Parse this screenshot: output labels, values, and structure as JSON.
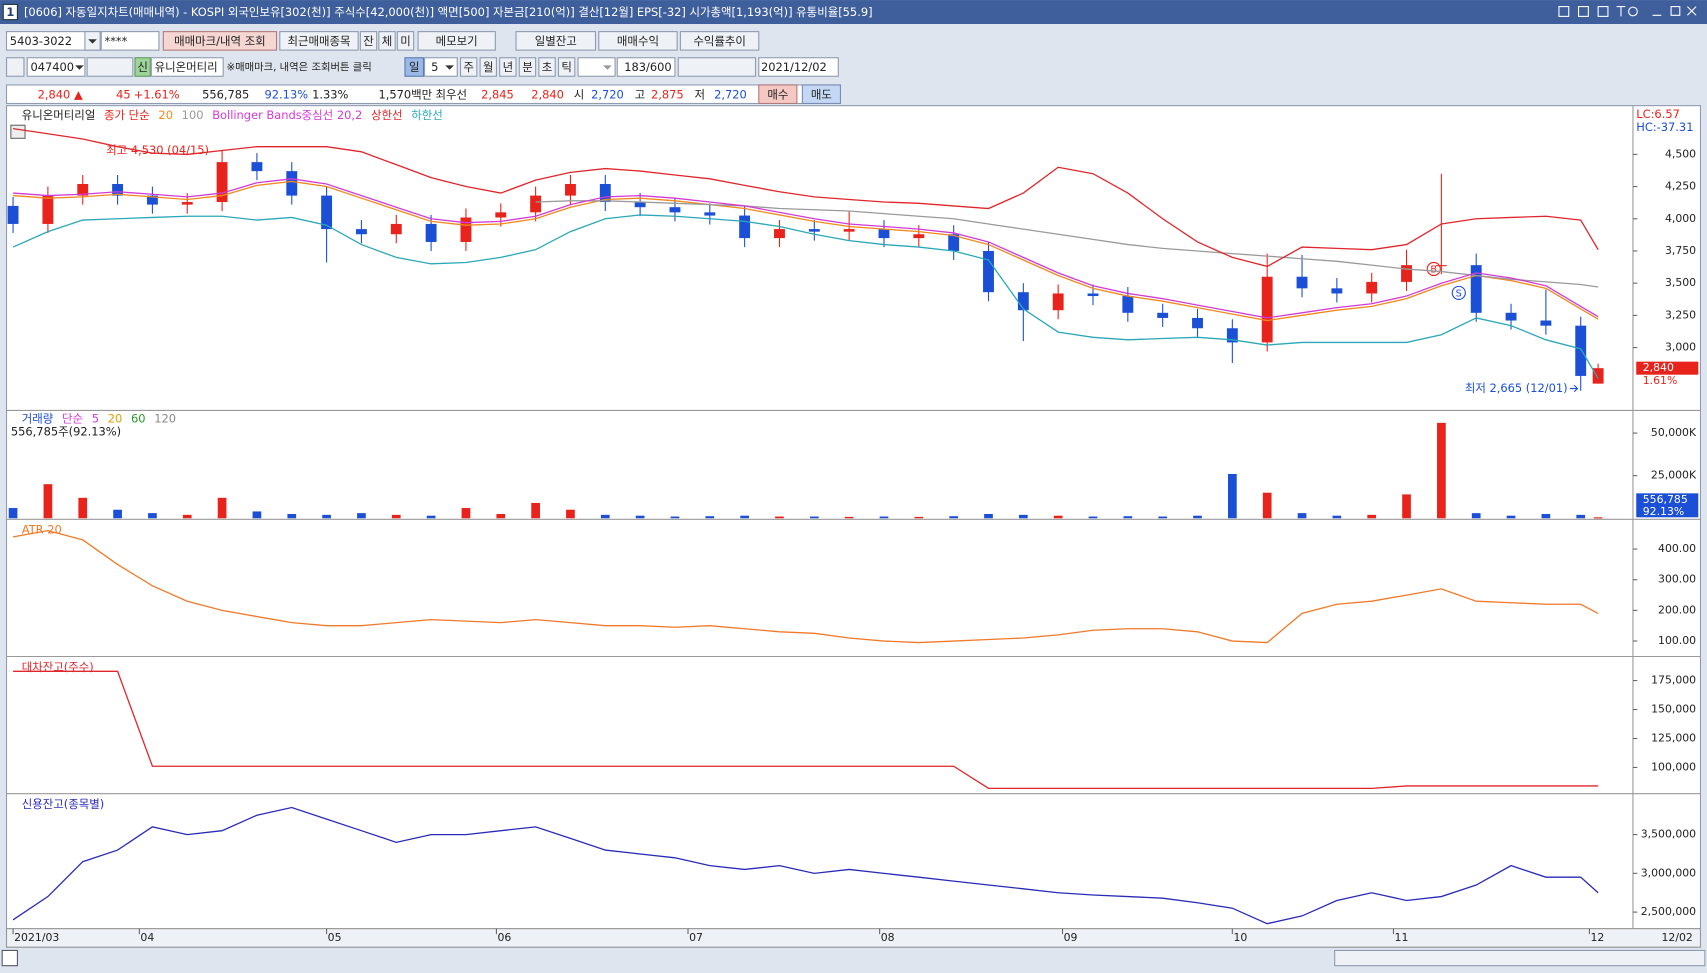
{
  "window": {
    "badge": "1",
    "title": "[0606] 자동일지차트(매매내역) - KOSPI 외국인보유[302(천)] 주식수[42,000(천)] 액면[500] 자본금[210(억)] 결산[12월] EPS[-32] 시가총액[1,193(억)] 유통비율[55.9]"
  },
  "toolbar": {
    "account": "5403-3022",
    "password": "****",
    "query_button": "매매마크/내역 조회",
    "recent_button": "최근매매종목",
    "tab_balance": "잔",
    "tab_exec": "체",
    "tab_pending": "미",
    "memo_button": "메모보기",
    "daily_button": "일별잔고",
    "profit_button": "매매수익",
    "return_button": "수익률추이",
    "code": "047400",
    "credit_badge": "신",
    "stock_name": "유니온머티리",
    "notice": "※매매마크, 내역은 조회버튼 클릭",
    "period_day": "일",
    "period_n": "5",
    "period_week": "주",
    "period_month": "월",
    "period_year": "년",
    "period_min": "분",
    "period_sec": "초",
    "period_tick": "틱",
    "count": "183/600",
    "date": "2021/12/02"
  },
  "quote": {
    "price": "2,840 ▲",
    "change": "45",
    "change_rate": "+1.61%",
    "volume": "556,785",
    "volume_rate": "92.13%",
    "turnover": "1.33%",
    "amount": "1,570백만",
    "best_label": "최우선",
    "ask": "2,845",
    "bid": "2,840",
    "open_label": "시",
    "open": "2,720",
    "high_label": "고",
    "high": "2,875",
    "low_label": "저",
    "low": "2,720",
    "buy_button": "매수",
    "sell_button": "매도"
  },
  "chart_data": [
    {
      "type": "candlestick",
      "title": "유니온머티리얼",
      "ma_label": "종가 단순",
      "up_color": "#e8231c",
      "down_color": "#1b4fd6",
      "x": [
        0,
        4,
        8,
        12,
        16,
        20,
        24,
        28,
        32,
        36,
        40,
        44,
        48,
        52,
        56,
        60,
        64,
        68,
        72,
        76,
        80,
        84,
        88,
        92,
        96,
        100,
        104,
        108,
        112,
        116,
        120,
        124,
        128,
        132,
        136,
        140,
        144,
        148,
        152,
        156,
        160,
        164,
        168,
        172,
        176,
        180,
        182
      ],
      "xlim": [
        -0.5,
        186
      ],
      "xticks": [
        {
          "value": 0,
          "label": "2021/03"
        },
        {
          "value": 14.5,
          "label": "04"
        },
        {
          "value": 36,
          "label": "05"
        },
        {
          "value": 55.5,
          "label": "06"
        },
        {
          "value": 77.5,
          "label": "07"
        },
        {
          "value": 99.5,
          "label": "08"
        },
        {
          "value": 120.5,
          "label": "09"
        },
        {
          "value": 140,
          "label": "10"
        },
        {
          "value": 158.5,
          "label": "11"
        },
        {
          "value": 181,
          "label": "12"
        }
      ],
      "end_label": "12/02",
      "open": [
        4100,
        3960,
        4180,
        4270,
        4180,
        4110,
        4130,
        4440,
        4370,
        4180,
        3920,
        3880,
        3960,
        3820,
        4010,
        4050,
        4180,
        4270,
        4130,
        4090,
        4050,
        4025,
        3850,
        3920,
        3900,
        3920,
        3850,
        3880,
        3750,
        3430,
        3290,
        3420,
        3400,
        3270,
        3230,
        3150,
        3040,
        3550,
        3460,
        3420,
        3510,
        3640,
        3640,
        3270,
        3210,
        3170,
        2720
      ],
      "high": [
        4170,
        4250,
        4340,
        4340,
        4250,
        4200,
        4530,
        4510,
        4440,
        4250,
        3990,
        4030,
        4030,
        4080,
        4120,
        4250,
        4340,
        4340,
        4200,
        4160,
        4120,
        4100,
        3990,
        3990,
        4060,
        3990,
        3950,
        3950,
        3820,
        3500,
        3490,
        3490,
        3470,
        3340,
        3300,
        3220,
        3730,
        3720,
        3540,
        3580,
        3760,
        4350,
        3730,
        3340,
        3450,
        3240,
        2875
      ],
      "low": [
        3890,
        3890,
        4110,
        4110,
        4040,
        4040,
        4060,
        4300,
        4110,
        3660,
        3810,
        3810,
        3750,
        3750,
        3940,
        3980,
        4110,
        4060,
        4020,
        3980,
        3955,
        3780,
        3780,
        3830,
        3830,
        3780,
        3780,
        3680,
        3360,
        3050,
        3220,
        3330,
        3200,
        3160,
        3080,
        2880,
        2970,
        3390,
        3350,
        3350,
        3440,
        3570,
        3200,
        3140,
        3100,
        2665,
        2720
      ],
      "close": [
        3960,
        4180,
        4270,
        4180,
        4110,
        4130,
        4440,
        4370,
        4180,
        3920,
        3880,
        3960,
        3820,
        4010,
        4050,
        4180,
        4270,
        4130,
        4090,
        4050,
        4025,
        3850,
        3920,
        3900,
        3920,
        3850,
        3880,
        3750,
        3430,
        3290,
        3420,
        3400,
        3270,
        3230,
        3150,
        3040,
        3550,
        3460,
        3420,
        3510,
        3640,
        3640,
        3270,
        3210,
        3170,
        2780,
        2840
      ],
      "series": [
        {
          "name": "20",
          "color": "#f08a1c",
          "values": [
            4180,
            4160,
            4170,
            4190,
            4170,
            4150,
            4180,
            4260,
            4290,
            4250,
            4160,
            4070,
            3980,
            3950,
            3960,
            4000,
            4090,
            4150,
            4160,
            4140,
            4110,
            4080,
            4030,
            3980,
            3940,
            3920,
            3900,
            3870,
            3800,
            3680,
            3560,
            3460,
            3400,
            3360,
            3310,
            3260,
            3210,
            3250,
            3290,
            3320,
            3380,
            3480,
            3560,
            3520,
            3460,
            3300,
            3220
          ]
        },
        {
          "name": "100",
          "color": "#9a9a9a",
          "values": [
            null,
            null,
            null,
            null,
            null,
            null,
            null,
            null,
            null,
            null,
            null,
            null,
            null,
            null,
            null,
            4130,
            4140,
            4140,
            4130,
            4120,
            4110,
            4100,
            4080,
            4070,
            4060,
            4040,
            4020,
            4000,
            3960,
            3920,
            3880,
            3840,
            3800,
            3770,
            3750,
            3730,
            3710,
            3690,
            3670,
            3640,
            3610,
            3590,
            3560,
            3530,
            3510,
            3490,
            3470
          ]
        },
        {
          "name": "Bollinger Bands중심선 20,2",
          "color": "#d23ad8",
          "values": [
            4200,
            4180,
            4190,
            4210,
            4190,
            4170,
            4200,
            4280,
            4310,
            4270,
            4180,
            4090,
            4000,
            3970,
            3980,
            4020,
            4110,
            4170,
            4180,
            4160,
            4130,
            4100,
            4050,
            4000,
            3960,
            3940,
            3920,
            3890,
            3820,
            3700,
            3580,
            3480,
            3420,
            3380,
            3330,
            3280,
            3230,
            3270,
            3310,
            3340,
            3400,
            3500,
            3580,
            3540,
            3480,
            3320,
            3240
          ]
        },
        {
          "name": "상한선",
          "color": "#e0262a",
          "values": [
            4700,
            4660,
            4620,
            4560,
            4510,
            4500,
            4530,
            4560,
            4560,
            4560,
            4520,
            4420,
            4320,
            4250,
            4200,
            4300,
            4360,
            4390,
            4370,
            4340,
            4310,
            4260,
            4210,
            4170,
            4150,
            4130,
            4120,
            4100,
            4080,
            4200,
            4400,
            4350,
            4200,
            4000,
            3820,
            3700,
            3630,
            3780,
            3770,
            3760,
            3800,
            3960,
            4000,
            4010,
            4020,
            3990,
            3760
          ]
        },
        {
          "name": "하한선",
          "color": "#2aa8b8",
          "values": [
            3780,
            3900,
            3990,
            4000,
            4010,
            4020,
            4020,
            3990,
            4010,
            3950,
            3800,
            3700,
            3650,
            3660,
            3700,
            3760,
            3900,
            4000,
            4030,
            4020,
            4000,
            3980,
            3940,
            3880,
            3830,
            3800,
            3780,
            3750,
            3680,
            3300,
            3120,
            3080,
            3060,
            3070,
            3080,
            3060,
            3020,
            3040,
            3040,
            3040,
            3040,
            3100,
            3230,
            3170,
            3060,
            2990,
            2760
          ]
        }
      ],
      "ylim": [
        2520,
        4870
      ],
      "yticks": [
        {
          "value": 3000,
          "label": "3,000"
        },
        {
          "value": 3250,
          "label": "3,250"
        },
        {
          "value": 3500,
          "label": "3,500"
        },
        {
          "value": 3750,
          "label": "3,750"
        },
        {
          "value": 4000,
          "label": "4,000"
        },
        {
          "value": 4250,
          "label": "4,250"
        },
        {
          "value": 4500,
          "label": "4,500"
        }
      ],
      "high_note": "최고 4,530 (04/15)",
      "low_note": "최저 2,665 (12/01)",
      "lc_label": "LC:6.57",
      "hc_label": "HC:-37.31",
      "last_label": "2,840",
      "change_label": "1.61%"
    },
    {
      "type": "bar",
      "title": "거래량",
      "title_color": "#1b4fd6",
      "ma_label": "단순",
      "ma_legend": [
        {
          "name": "5",
          "color": "#d23ad8"
        },
        {
          "name": "20",
          "color": "#e0a000"
        },
        {
          "name": "60",
          "color": "#2a9a2a"
        },
        {
          "name": "120",
          "color": "#888888"
        }
      ],
      "info_label": "556,785주(92.13%)",
      "last_label": "556,785",
      "ratio_label": "92.13%",
      "values": [
        6000,
        20000,
        12000,
        5000,
        3000,
        2000,
        12000,
        4000,
        2500,
        2000,
        3000,
        2000,
        1500,
        6000,
        2500,
        9000,
        5000,
        2000,
        1500,
        1000,
        1200,
        1500,
        1000,
        1000,
        800,
        1000,
        800,
        1200,
        2500,
        2000,
        1500,
        1000,
        1200,
        1000,
        1500,
        26000,
        15000,
        3000,
        1500,
        2000,
        14000,
        56000,
        3000,
        1500,
        2500,
        2000,
        556.785
      ],
      "ylim": [
        0,
        62000
      ],
      "yticks": [
        {
          "value": 25000,
          "label": "25,000K"
        },
        {
          "value": 50000,
          "label": "50,000K"
        }
      ]
    },
    {
      "type": "line",
      "title": "ATR 20",
      "color": "#f07a2a",
      "values": [
        440,
        460,
        430,
        350,
        280,
        230,
        200,
        180,
        160,
        150,
        150,
        160,
        170,
        165,
        160,
        170,
        160,
        150,
        150,
        145,
        150,
        140,
        130,
        125,
        110,
        100,
        95,
        100,
        105,
        110,
        120,
        135,
        140,
        140,
        130,
        100,
        95,
        190,
        220,
        230,
        250,
        270,
        230,
        225,
        220,
        220,
        190
      ],
      "ylim": [
        53,
        490
      ],
      "yticks": [
        {
          "value": 100,
          "label": "100.00"
        },
        {
          "value": 200,
          "label": "200.00"
        },
        {
          "value": 300,
          "label": "300.00"
        },
        {
          "value": 400,
          "label": "400.00"
        }
      ]
    },
    {
      "type": "line",
      "title": "대차잔고(주수)",
      "color": "#e0262a",
      "values": [
        183000,
        183000,
        183000,
        183000,
        101000,
        101000,
        101000,
        101000,
        101000,
        101000,
        101000,
        101000,
        101000,
        101000,
        101000,
        101000,
        101000,
        101000,
        101000,
        101000,
        101000,
        101000,
        101000,
        101000,
        101000,
        101000,
        101000,
        101000,
        82000,
        82000,
        82000,
        82000,
        82000,
        82000,
        82000,
        82000,
        82000,
        82000,
        82000,
        82000,
        84000,
        84000,
        84000,
        84000,
        84000,
        84000,
        84000
      ],
      "ylim": [
        78300,
        193900
      ],
      "yticks": [
        {
          "value": 100000,
          "label": "100,000"
        },
        {
          "value": 125000,
          "label": "125,000"
        },
        {
          "value": 150000,
          "label": "150,000"
        },
        {
          "value": 175000,
          "label": "175,000"
        }
      ]
    },
    {
      "type": "line",
      "title": "신용잔고(종목별)",
      "color": "#2a2ab8",
      "values": [
        2400000,
        2700000,
        3150000,
        3300000,
        3600000,
        3500000,
        3550000,
        3750000,
        3850000,
        3700000,
        3550000,
        3400000,
        3500000,
        3500000,
        3550000,
        3600000,
        3450000,
        3300000,
        3250000,
        3200000,
        3100000,
        3050000,
        3100000,
        3000000,
        3050000,
        3000000,
        2950000,
        2900000,
        2850000,
        2800000,
        2750000,
        2720000,
        2700000,
        2680000,
        2620000,
        2550000,
        2350000,
        2450000,
        2650000,
        2750000,
        2650000,
        2700000,
        2850000,
        3100000,
        2950000,
        2950000,
        2750000
      ],
      "ylim": [
        2300000,
        4000000
      ],
      "yticks": [
        {
          "value": 2500000,
          "label": "2,500,000"
        },
        {
          "value": 3000000,
          "label": "3,000,000"
        },
        {
          "value": 3500000,
          "label": "3,500,000"
        }
      ]
    }
  ]
}
